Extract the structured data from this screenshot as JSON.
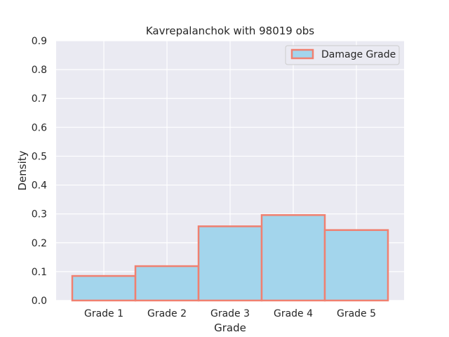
{
  "chart_data": {
    "type": "bar",
    "title": "Kavrepalanchok with 98019 obs",
    "xlabel": "Grade",
    "ylabel": "Density",
    "categories": [
      "Grade 1",
      "Grade 2",
      "Grade 3",
      "Grade 4",
      "Grade 5"
    ],
    "series": [
      {
        "name": "Damage Grade",
        "values": [
          0.085,
          0.119,
          0.257,
          0.296,
          0.244
        ]
      }
    ],
    "ylim": [
      0,
      0.9
    ],
    "yticks": [
      "0.0",
      "0.1",
      "0.2",
      "0.3",
      "0.4",
      "0.5",
      "0.6",
      "0.7",
      "0.8",
      "0.9"
    ],
    "grid": true,
    "legend_position": "top-right",
    "colors": {
      "background": "#eaeaf2",
      "grid": "#ffffff",
      "bar_fill": "#a3d5ec",
      "bar_edge": "#f08070"
    }
  }
}
